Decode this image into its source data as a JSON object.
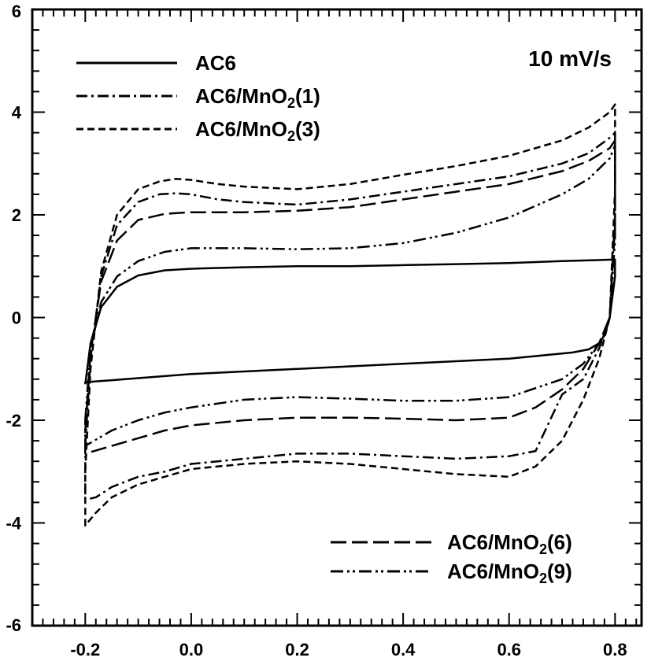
{
  "chart_data": {
    "type": "line",
    "title": "",
    "xlabel": "",
    "ylabel": "",
    "xlim": [
      -0.3,
      0.85
    ],
    "ylim": [
      -6,
      6
    ],
    "xticks": [
      -0.2,
      0.0,
      0.2,
      0.4,
      0.6,
      0.8
    ],
    "xtick_labels": [
      "-0.2",
      "0.0",
      "0.2",
      "0.4",
      "0.6",
      "0.8"
    ],
    "yticks": [
      -6,
      -4,
      -2,
      0,
      2,
      4,
      6
    ],
    "ytick_labels": [
      "-6",
      "-4",
      "-2",
      "0",
      "2",
      "4",
      "6"
    ],
    "grid": false,
    "annotation": "10 mV/s",
    "legend_top_left": [
      {
        "name": "AC6",
        "dash": "solid"
      },
      {
        "name": "AC6/MnO₂(1)",
        "dash": "dashdot"
      },
      {
        "name": "AC6/MnO₂(3)",
        "dash": "short-dash"
      }
    ],
    "legend_bottom_right": [
      {
        "name": "AC6/MnO₂(6)",
        "dash": "long-dash"
      },
      {
        "name": "AC6/MnO₂(9)",
        "dash": "dash-dot-dot"
      }
    ],
    "series": [
      {
        "name": "AC6",
        "dash": "solid",
        "color": "#000000",
        "x": [
          -0.2,
          -0.19,
          -0.17,
          -0.14,
          -0.1,
          -0.05,
          0.0,
          0.1,
          0.2,
          0.3,
          0.4,
          0.5,
          0.6,
          0.7,
          0.8,
          0.8,
          0.79,
          0.78,
          0.77,
          0.75,
          0.72,
          0.6,
          0.5,
          0.4,
          0.3,
          0.2,
          0.1,
          0.0,
          -0.1,
          -0.15,
          -0.2,
          -0.2
        ],
        "y": [
          -1.3,
          -0.5,
          0.2,
          0.6,
          0.82,
          0.92,
          0.95,
          0.98,
          1.0,
          1.0,
          1.02,
          1.04,
          1.06,
          1.1,
          1.13,
          0.8,
          0.0,
          -0.35,
          -0.5,
          -0.62,
          -0.68,
          -0.8,
          -0.85,
          -0.9,
          -0.95,
          -1.0,
          -1.05,
          -1.1,
          -1.18,
          -1.22,
          -1.26,
          -1.3
        ]
      },
      {
        "name": "AC6/MnO₂(1)",
        "dash": "dashdot",
        "color": "#000000",
        "x": [
          -0.2,
          -0.19,
          -0.17,
          -0.14,
          -0.1,
          -0.06,
          -0.03,
          0.0,
          0.05,
          0.1,
          0.2,
          0.3,
          0.4,
          0.5,
          0.6,
          0.7,
          0.75,
          0.79,
          0.8,
          0.8,
          0.79,
          0.77,
          0.74,
          0.7,
          0.65,
          0.6,
          0.5,
          0.4,
          0.3,
          0.2,
          0.1,
          0.0,
          -0.05,
          -0.1,
          -0.15,
          -0.18,
          -0.2,
          -0.2
        ],
        "y": [
          -2.5,
          -0.8,
          0.8,
          1.8,
          2.25,
          2.4,
          2.42,
          2.4,
          2.3,
          2.25,
          2.2,
          2.3,
          2.45,
          2.6,
          2.75,
          3.0,
          3.2,
          3.5,
          3.6,
          2.0,
          0.0,
          -0.6,
          -1.2,
          -1.5,
          -2.6,
          -2.7,
          -2.75,
          -2.7,
          -2.65,
          -2.65,
          -2.75,
          -2.85,
          -3.0,
          -3.1,
          -3.3,
          -3.5,
          -3.55,
          -2.5
        ]
      },
      {
        "name": "AC6/MnO₂(3)",
        "dash": "short-dash",
        "color": "#000000",
        "x": [
          -0.2,
          -0.19,
          -0.17,
          -0.14,
          -0.1,
          -0.06,
          -0.03,
          0.0,
          0.05,
          0.1,
          0.2,
          0.3,
          0.4,
          0.5,
          0.6,
          0.7,
          0.75,
          0.79,
          0.8,
          0.8,
          0.79,
          0.77,
          0.74,
          0.7,
          0.65,
          0.6,
          0.5,
          0.4,
          0.3,
          0.2,
          0.1,
          0.0,
          -0.05,
          -0.1,
          -0.15,
          -0.18,
          -0.2,
          -0.2
        ],
        "y": [
          -3.0,
          -1.0,
          0.9,
          2.0,
          2.5,
          2.65,
          2.7,
          2.68,
          2.6,
          2.55,
          2.5,
          2.6,
          2.78,
          2.95,
          3.15,
          3.45,
          3.7,
          4.0,
          4.15,
          2.5,
          0.0,
          -0.8,
          -1.6,
          -2.4,
          -2.9,
          -3.1,
          -3.05,
          -2.95,
          -2.85,
          -2.8,
          -2.85,
          -2.95,
          -3.1,
          -3.25,
          -3.5,
          -3.8,
          -4.05,
          -3.0
        ]
      },
      {
        "name": "AC6/MnO₂(6)",
        "dash": "long-dash",
        "color": "#000000",
        "x": [
          -0.2,
          -0.19,
          -0.17,
          -0.14,
          -0.1,
          -0.05,
          0.0,
          0.1,
          0.2,
          0.3,
          0.4,
          0.5,
          0.6,
          0.7,
          0.75,
          0.79,
          0.8,
          0.8,
          0.79,
          0.77,
          0.74,
          0.7,
          0.65,
          0.6,
          0.5,
          0.4,
          0.3,
          0.2,
          0.1,
          0.0,
          -0.05,
          -0.1,
          -0.15,
          -0.2,
          -0.2
        ],
        "y": [
          -2.2,
          -0.7,
          0.7,
          1.5,
          1.9,
          2.02,
          2.05,
          2.05,
          2.08,
          2.15,
          2.3,
          2.45,
          2.6,
          2.85,
          3.05,
          3.3,
          3.45,
          1.8,
          0.0,
          -0.5,
          -1.0,
          -1.4,
          -1.75,
          -1.95,
          -2.0,
          -1.97,
          -1.95,
          -1.95,
          -2.0,
          -2.1,
          -2.2,
          -2.35,
          -2.5,
          -2.65,
          -2.2
        ]
      },
      {
        "name": "AC6/MnO₂(9)",
        "dash": "dash-dot-dot",
        "color": "#000000",
        "x": [
          -0.2,
          -0.19,
          -0.17,
          -0.14,
          -0.1,
          -0.05,
          0.0,
          0.1,
          0.2,
          0.3,
          0.4,
          0.5,
          0.6,
          0.7,
          0.75,
          0.79,
          0.8,
          0.8,
          0.79,
          0.77,
          0.74,
          0.7,
          0.6,
          0.5,
          0.4,
          0.3,
          0.2,
          0.1,
          0.0,
          -0.05,
          -0.1,
          -0.15,
          -0.2,
          -0.2
        ],
        "y": [
          -2.0,
          -0.6,
          0.3,
          0.8,
          1.1,
          1.28,
          1.35,
          1.35,
          1.33,
          1.35,
          1.45,
          1.65,
          1.95,
          2.4,
          2.7,
          3.1,
          3.35,
          1.5,
          0.0,
          -0.5,
          -0.9,
          -1.2,
          -1.55,
          -1.62,
          -1.62,
          -1.58,
          -1.55,
          -1.6,
          -1.75,
          -1.85,
          -2.0,
          -2.2,
          -2.5,
          -2.0
        ]
      }
    ]
  }
}
